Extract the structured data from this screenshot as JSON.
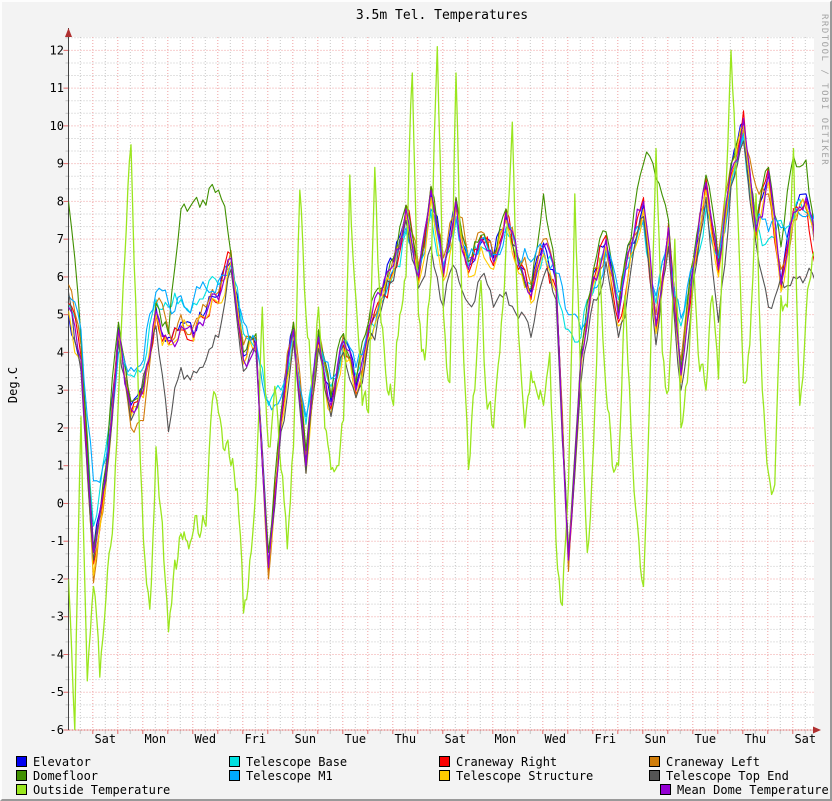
{
  "chart_data": {
    "type": "line",
    "title": "3.5m Tel. Temperatures",
    "ylabel": "Deg.C",
    "watermark": "RRDTOOL / TOBI OETIKER",
    "ylim": [
      -6,
      12.35
    ],
    "xlabel": "",
    "grid": true,
    "legend_position": "bottom",
    "y_ticks": [
      "-6",
      "-5",
      "-4",
      "-3",
      "-2",
      "-1",
      "0",
      "1",
      "2",
      "3",
      "4",
      "5",
      "6",
      "7",
      "8",
      "9",
      "10",
      "11",
      "12"
    ],
    "x_tick_labels": [
      "Sat",
      "Mon",
      "Wed",
      "Fri",
      "Sun",
      "Tue",
      "Thu",
      "Sat",
      "Mon",
      "Wed",
      "Fri",
      "Sun",
      "Tue",
      "Thu",
      "Sat"
    ],
    "x_tick_days": [
      1.472,
      3.472,
      5.472,
      7.472,
      9.472,
      11.472,
      13.472,
      15.472,
      17.472,
      19.472,
      21.472,
      23.472,
      25.472,
      27.472,
      29.472
    ],
    "x_range_days": [
      0,
      29.82
    ],
    "series": [
      {
        "name": "Elevator",
        "color": "#0000f0",
        "step_days": 0.5,
        "values": [
          5.0,
          3.6,
          -1.2,
          0.9,
          4.7,
          2.6,
          3.1,
          5.2,
          4.4,
          4.8,
          4.5,
          5.1,
          5.5,
          6.4,
          3.9,
          4.2,
          -1.6,
          2.3,
          4.7,
          1.1,
          4.5,
          2.7,
          4.4,
          3.1,
          4.7,
          5.6,
          6.4,
          7.7,
          6.1,
          8.2,
          6.2,
          7.9,
          6.3,
          6.9,
          6.5,
          7.6,
          6.4,
          5.6,
          6.9,
          5.9,
          -1.4,
          3.9,
          6.1,
          6.9,
          5.0,
          6.9,
          7.9,
          4.8,
          7.2,
          3.5,
          6.4,
          8.4,
          6.3,
          8.9,
          10.1,
          7.3,
          8.7,
          5.9,
          7.6,
          8.2,
          6.4
        ]
      },
      {
        "name": "Telescope Base",
        "color": "#00e0e0",
        "step_days": 0.5,
        "values": [
          5.3,
          4.4,
          -0.6,
          1.5,
          4.2,
          3.4,
          3.6,
          5.4,
          5.2,
          5.4,
          5.3,
          5.6,
          5.8,
          6.3,
          4.5,
          4.1,
          2.6,
          3.0,
          4.5,
          2.1,
          4.3,
          3.1,
          4.2,
          3.4,
          4.5,
          5.3,
          6.1,
          7.2,
          6.0,
          7.7,
          6.2,
          7.5,
          6.3,
          6.8,
          6.4,
          7.2,
          6.3,
          5.8,
          6.6,
          5.9,
          4.6,
          4.4,
          5.6,
          6.6,
          5.4,
          6.5,
          7.4,
          5.3,
          6.8,
          4.7,
          6.2,
          7.8,
          6.4,
          8.4,
          9.7,
          7.3,
          7.0,
          7.5,
          7.6,
          7.7,
          7.9
        ]
      },
      {
        "name": "Craneway Right",
        "color": "#fa0000",
        "step_days": 0.5,
        "values": [
          5.3,
          3.9,
          -1.6,
          0.7,
          4.5,
          2.4,
          2.9,
          5.0,
          4.2,
          4.6,
          4.3,
          4.9,
          5.3,
          6.6,
          3.7,
          4.4,
          -1.8,
          2.1,
          4.5,
          0.9,
          4.3,
          2.5,
          4.2,
          2.9,
          4.5,
          5.4,
          6.2,
          7.9,
          5.9,
          8.4,
          6.0,
          8.1,
          6.1,
          7.1,
          6.3,
          7.8,
          6.2,
          5.4,
          6.7,
          5.7,
          -1.6,
          3.7,
          5.9,
          7.1,
          4.8,
          6.7,
          8.1,
          4.6,
          7.4,
          3.3,
          6.2,
          8.6,
          6.1,
          8.7,
          10.4,
          7.1,
          8.9,
          5.7,
          7.8,
          8.0,
          6.2
        ]
      },
      {
        "name": "Craneway Left",
        "color": "#d07d0a",
        "step_days": 0.5,
        "values": [
          5.8,
          4.2,
          -2.1,
          0.5,
          4.4,
          2.0,
          2.2,
          5.3,
          4.6,
          5.0,
          4.7,
          5.2,
          5.6,
          6.7,
          4.2,
          4.0,
          -2.0,
          2.4,
          4.8,
          1.3,
          4.6,
          2.9,
          4.5,
          3.3,
          4.8,
          5.7,
          6.5,
          7.6,
          6.3,
          8.1,
          6.5,
          7.8,
          6.5,
          7.2,
          6.6,
          7.5,
          6.5,
          5.8,
          7.0,
          6.1,
          -1.8,
          4.0,
          6.2,
          6.8,
          5.2,
          7.0,
          7.8,
          5.0,
          7.0,
          3.8,
          6.5,
          8.3,
          6.6,
          9.0,
          9.9,
          8.4,
          8.2,
          6.2,
          7.5,
          7.8,
          7.1
        ]
      },
      {
        "name": "Domefloor",
        "color": "#409000",
        "step_days": 0.5,
        "values": [
          8.0,
          4.4,
          -1.2,
          1.0,
          4.8,
          2.7,
          3.2,
          5.3,
          4.5,
          7.8,
          8.0,
          7.9,
          8.3,
          6.6,
          4.0,
          4.5,
          -1.3,
          2.4,
          4.8,
          1.4,
          4.6,
          2.8,
          4.5,
          3.2,
          4.8,
          5.7,
          6.5,
          7.9,
          6.2,
          8.4,
          6.3,
          8.1,
          6.4,
          7.1,
          6.6,
          7.8,
          6.5,
          5.7,
          8.2,
          6.0,
          -1.3,
          4.0,
          6.2,
          7.2,
          5.1,
          7.0,
          9.0,
          8.6,
          7.5,
          3.6,
          6.5,
          8.7,
          6.4,
          9.0,
          10.0,
          7.4,
          8.9,
          6.8,
          9.2,
          9.1,
          6.0
        ]
      },
      {
        "name": "Telescope M1",
        "color": "#00aaff",
        "step_days": 0.5,
        "values": [
          5.5,
          4.6,
          0.6,
          1.2,
          4.0,
          3.6,
          3.8,
          5.6,
          5.3,
          5.5,
          5.4,
          5.7,
          5.9,
          6.4,
          4.8,
          4.3,
          2.7,
          2.8,
          4.6,
          2.3,
          4.4,
          3.3,
          4.3,
          3.6,
          4.6,
          5.4,
          6.2,
          7.3,
          6.1,
          7.8,
          6.3,
          7.6,
          6.5,
          7.0,
          6.6,
          7.3,
          6.4,
          6.4,
          6.7,
          6.1,
          5.0,
          4.6,
          5.7,
          6.7,
          5.6,
          6.6,
          7.5,
          5.5,
          6.9,
          4.9,
          6.3,
          7.9,
          6.5,
          8.5,
          9.8,
          7.4,
          7.2,
          7.3,
          7.5,
          7.6,
          7.8
        ]
      },
      {
        "name": "Telescope Structure",
        "color": "#ffcc00",
        "step_days": 0.5,
        "values": [
          5.1,
          3.7,
          -1.9,
          0.6,
          4.5,
          2.3,
          2.8,
          5.0,
          4.2,
          4.6,
          4.3,
          4.9,
          5.3,
          6.4,
          3.7,
          4.2,
          -1.7,
          2.0,
          4.4,
          0.8,
          4.2,
          2.4,
          4.1,
          2.8,
          4.4,
          5.3,
          6.1,
          7.7,
          5.8,
          8.1,
          5.9,
          7.8,
          6.0,
          6.8,
          6.2,
          7.5,
          6.1,
          5.3,
          6.6,
          5.6,
          -1.4,
          3.6,
          5.8,
          6.8,
          4.7,
          6.6,
          7.8,
          4.5,
          7.1,
          3.2,
          6.1,
          8.3,
          6.0,
          8.6,
          10.0,
          7.0,
          8.5,
          5.6,
          7.5,
          7.9,
          6.1
        ]
      },
      {
        "name": "Telescope Top End",
        "color": "#555555",
        "step_days": 0.5,
        "values": [
          5.6,
          3.5,
          -1.5,
          0.6,
          4.3,
          2.2,
          3.4,
          4.7,
          1.9,
          3.6,
          3.5,
          3.8,
          4.4,
          6.2,
          3.5,
          4.0,
          -1.6,
          1.9,
          4.3,
          0.8,
          4.1,
          2.3,
          4.0,
          2.8,
          4.3,
          5.1,
          5.9,
          7.5,
          5.7,
          6.8,
          5.2,
          6.2,
          5.3,
          6.0,
          5.2,
          5.6,
          4.9,
          4.4,
          6.0,
          5.4,
          -1.3,
          3.2,
          5.4,
          6.4,
          4.4,
          6.2,
          7.6,
          4.2,
          6.8,
          3.0,
          5.9,
          8.1,
          4.8,
          8.4,
          9.6,
          6.9,
          5.2,
          6.0,
          6.0,
          6.0,
          5.4
        ]
      },
      {
        "name": "Outside Temperature",
        "color": "#9ae61e",
        "step_days": 0.25,
        "values": [
          -2.0,
          -6.0,
          2.3,
          -4.7,
          -2.2,
          -4.6,
          -2.5,
          -0.8,
          2.8,
          6.5,
          9.5,
          4.0,
          -1.0,
          -2.8,
          1.5,
          -0.5,
          -3.4,
          -1.5,
          -0.8,
          -1.0,
          -0.7,
          -0.9,
          -0.6,
          2.7,
          2.4,
          1.4,
          1.0,
          0.4,
          -2.9,
          -1.5,
          0.5,
          5.2,
          1.5,
          3.1,
          0.9,
          -1.2,
          1.5,
          8.3,
          5.0,
          2.9,
          5.2,
          2.0,
          0.9,
          1.0,
          2.2,
          8.7,
          5.4,
          2.6,
          2.4,
          8.9,
          4.8,
          3.0,
          2.6,
          5.0,
          6.0,
          11.4,
          5.0,
          3.8,
          6.0,
          12.1,
          5.0,
          3.2,
          11.4,
          5.0,
          0.9,
          3.0,
          5.9,
          2.5,
          2.0,
          4.0,
          6.8,
          10.1,
          4.5,
          2.0,
          3.5,
          2.9,
          2.6,
          4.0,
          -1.0,
          -2.7,
          0.5,
          8.2,
          3.0,
          -1.3,
          1.5,
          6.5,
          3.0,
          1.0,
          1.0,
          5.5,
          2.0,
          -0.5,
          -2.2,
          3.0,
          9.4,
          4.0,
          3.0,
          7.0,
          2.0,
          3.2,
          6.5,
          3.5,
          3.0,
          5.5,
          3.3,
          8.0,
          12.0,
          8.0,
          3.2,
          4.2,
          8.2,
          3.0,
          0.8,
          0.5,
          5.5,
          5.2,
          9.4,
          2.6,
          5.0,
          6.5,
          6.3
        ]
      },
      {
        "name": "Mean Dome Temperature",
        "color": "#9400d3",
        "step_days": 0.5,
        "values": [
          5.2,
          3.8,
          -1.3,
          0.8,
          4.6,
          2.5,
          3.0,
          5.1,
          4.3,
          4.7,
          4.4,
          5.0,
          5.4,
          6.5,
          3.8,
          4.3,
          -1.7,
          2.2,
          4.6,
          1.0,
          4.4,
          2.6,
          4.3,
          3.0,
          4.6,
          5.5,
          6.3,
          7.8,
          6.0,
          8.3,
          6.1,
          8.0,
          6.2,
          7.0,
          6.4,
          7.7,
          6.3,
          5.5,
          6.8,
          5.8,
          -1.5,
          3.8,
          6.0,
          7.0,
          4.9,
          6.8,
          8.0,
          4.7,
          7.3,
          3.4,
          6.3,
          8.5,
          6.2,
          8.8,
          10.2,
          7.2,
          8.8,
          5.8,
          7.7,
          8.1,
          6.3
        ]
      }
    ]
  }
}
